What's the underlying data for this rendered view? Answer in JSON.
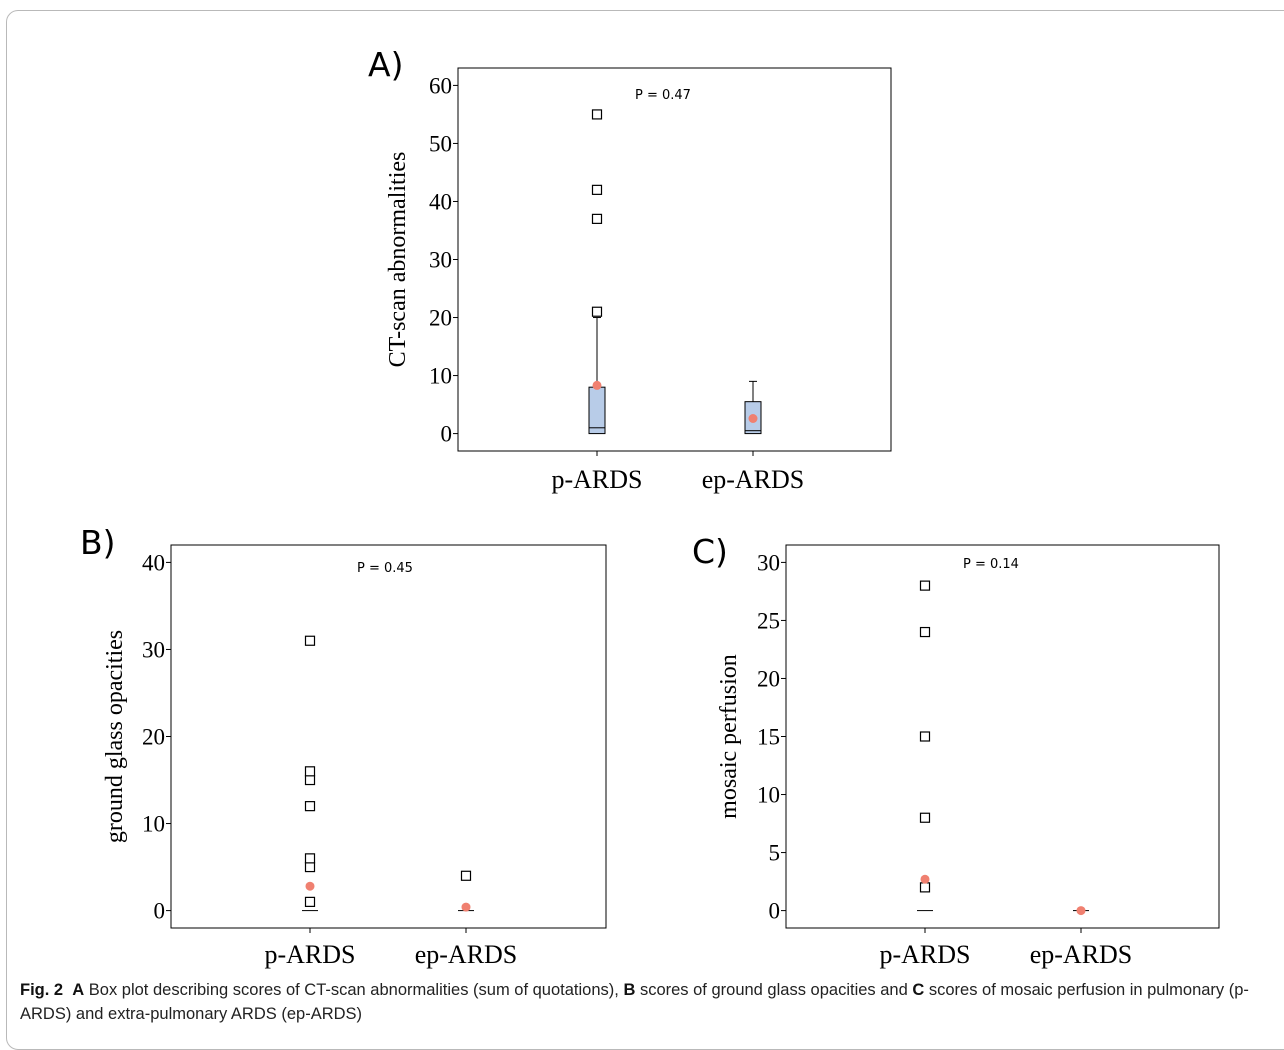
{
  "chart_data": [
    {
      "panel": "A)",
      "type": "box",
      "ylabel": "CT-scan abnormalities",
      "p_value": "P = 0.47",
      "categories": [
        "p-ARDS",
        "ep-ARDS"
      ],
      "yticks": [
        0,
        10,
        20,
        30,
        40,
        50,
        60
      ],
      "ylim": [
        -3,
        63
      ],
      "boxes": [
        {
          "q1": 0,
          "median": 1,
          "q3": 8,
          "whisker_low": 0,
          "whisker_high": 20,
          "mean": 8.3,
          "outliers": [
            21,
            37,
            42,
            55
          ]
        },
        {
          "q1": 0,
          "median": 0.5,
          "q3": 5.5,
          "whisker_low": 0,
          "whisker_high": 9,
          "mean": 2.6,
          "outliers": []
        }
      ]
    },
    {
      "panel": "B)",
      "type": "box",
      "ylabel": "ground glass opacities",
      "p_value": "P = 0.45",
      "categories": [
        "p-ARDS",
        "ep-ARDS"
      ],
      "yticks": [
        0,
        10,
        20,
        30,
        40
      ],
      "ylim": [
        -2,
        42
      ],
      "boxes": [
        {
          "q1": 0,
          "median": 0,
          "q3": 0,
          "whisker_low": 0,
          "whisker_high": 0,
          "mean": 2.8,
          "outliers": [
            1,
            5,
            6,
            12,
            15,
            16,
            31
          ]
        },
        {
          "q1": 0,
          "median": 0,
          "q3": 0,
          "whisker_low": 0,
          "whisker_high": 0,
          "mean": 0.4,
          "outliers": [
            4
          ]
        }
      ]
    },
    {
      "panel": "C)",
      "type": "box",
      "ylabel": "mosaic perfusion",
      "p_value": "P = 0.14",
      "categories": [
        "p-ARDS",
        "ep-ARDS"
      ],
      "yticks": [
        0,
        5,
        10,
        15,
        20,
        25,
        30
      ],
      "ylim": [
        -1.5,
        31.5
      ],
      "boxes": [
        {
          "q1": 0,
          "median": 0,
          "q3": 0,
          "whisker_low": 0,
          "whisker_high": 0,
          "mean": 2.7,
          "outliers": [
            2,
            8,
            15,
            24,
            28
          ]
        },
        {
          "q1": 0,
          "median": 0,
          "q3": 0,
          "whisker_low": 0,
          "whisker_high": 0,
          "mean": 0,
          "outliers": []
        }
      ]
    }
  ],
  "caption": {
    "label": "Fig. 2",
    "parts": [
      {
        "bold": "A",
        "text": " Box plot describing scores of CT-scan abnormalities (sum of quotations), "
      },
      {
        "bold": "B",
        "text": " scores of ground glass opacities and "
      },
      {
        "bold": "C",
        "text": " scores of mosaic perfusion in pulmonary (p-ARDS) and extra-pulmonary ARDS (ep-ARDS)"
      }
    ]
  },
  "colors": {
    "box_fill": "#b8cce8",
    "mean_marker": "#f08070",
    "axis": "#000000"
  }
}
